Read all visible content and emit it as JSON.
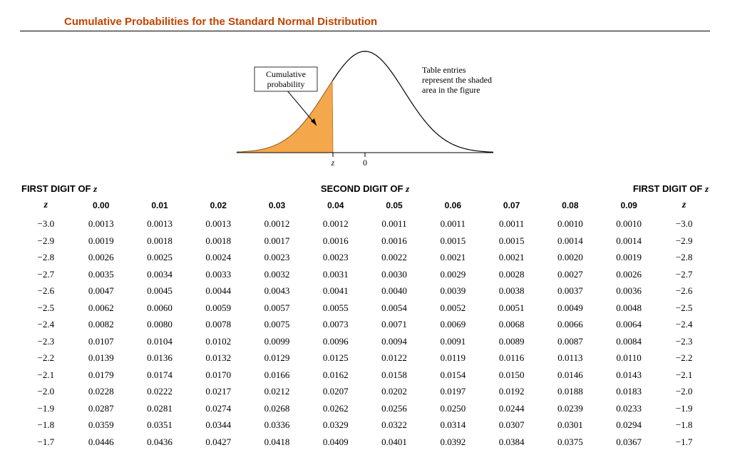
{
  "title": "Cumulative Probabilities for the Standard Normal Distribution",
  "figure": {
    "label_cumulative": "Cumulative\nprobability",
    "label_note": "Table entries\nrepresent the shaded\narea in the figure",
    "axis_z": "z",
    "axis_zero": "0",
    "curve_stroke": "#000000",
    "curve_stroke_width": 1.2,
    "fill_color": "#f4a74b",
    "fill_stroke": "#b06a1a",
    "axis_color": "#000000",
    "font_family": "Times New Roman, Times, serif",
    "label_fontsize": 12,
    "axis_fontsize": 12
  },
  "headings": {
    "left": "FIRST DIGIT OF",
    "center": "SECOND DIGIT OF",
    "right": "FIRST DIGIT OF",
    "zvar": "z"
  },
  "columns": [
    "z",
    "0.00",
    "0.01",
    "0.02",
    "0.03",
    "0.04",
    "0.05",
    "0.06",
    "0.07",
    "0.08",
    "0.09",
    "z"
  ],
  "rows": [
    {
      "z": "−3.0",
      "v": [
        "0.0013",
        "0.0013",
        "0.0013",
        "0.0012",
        "0.0012",
        "0.0011",
        "0.0011",
        "0.0011",
        "0.0010",
        "0.0010"
      ]
    },
    {
      "z": "−2.9",
      "v": [
        "0.0019",
        "0.0018",
        "0.0018",
        "0.0017",
        "0.0016",
        "0.0016",
        "0.0015",
        "0.0015",
        "0.0014",
        "0.0014"
      ]
    },
    {
      "z": "−2.8",
      "v": [
        "0.0026",
        "0.0025",
        "0.0024",
        "0.0023",
        "0.0023",
        "0.0022",
        "0.0021",
        "0.0021",
        "0.0020",
        "0.0019"
      ]
    },
    {
      "z": "−2.7",
      "v": [
        "0.0035",
        "0.0034",
        "0.0033",
        "0.0032",
        "0.0031",
        "0.0030",
        "0.0029",
        "0.0028",
        "0.0027",
        "0.0026"
      ]
    },
    {
      "z": "−2.6",
      "v": [
        "0.0047",
        "0.0045",
        "0.0044",
        "0.0043",
        "0.0041",
        "0.0040",
        "0.0039",
        "0.0038",
        "0.0037",
        "0.0036"
      ]
    },
    {
      "z": "−2.5",
      "v": [
        "0.0062",
        "0.0060",
        "0.0059",
        "0.0057",
        "0.0055",
        "0.0054",
        "0.0052",
        "0.0051",
        "0.0049",
        "0.0048"
      ]
    },
    {
      "z": "−2.4",
      "v": [
        "0.0082",
        "0.0080",
        "0.0078",
        "0.0075",
        "0.0073",
        "0.0071",
        "0.0069",
        "0.0068",
        "0.0066",
        "0.0064"
      ]
    },
    {
      "z": "−2.3",
      "v": [
        "0.0107",
        "0.0104",
        "0.0102",
        "0.0099",
        "0.0096",
        "0.0094",
        "0.0091",
        "0.0089",
        "0.0087",
        "0.0084"
      ]
    },
    {
      "z": "−2.2",
      "v": [
        "0.0139",
        "0.0136",
        "0.0132",
        "0.0129",
        "0.0125",
        "0.0122",
        "0.0119",
        "0.0116",
        "0.0113",
        "0.0110"
      ]
    },
    {
      "z": "−2.1",
      "v": [
        "0.0179",
        "0.0174",
        "0.0170",
        "0.0166",
        "0.0162",
        "0.0158",
        "0.0154",
        "0.0150",
        "0.0146",
        "0.0143"
      ]
    },
    {
      "z": "−2.0",
      "v": [
        "0.0228",
        "0.0222",
        "0.0217",
        "0.0212",
        "0.0207",
        "0.0202",
        "0.0197",
        "0.0192",
        "0.0188",
        "0.0183"
      ]
    },
    {
      "z": "−1.9",
      "v": [
        "0.0287",
        "0.0281",
        "0.0274",
        "0.0268",
        "0.0262",
        "0.0256",
        "0.0250",
        "0.0244",
        "0.0239",
        "0.0233"
      ]
    },
    {
      "z": "−1.8",
      "v": [
        "0.0359",
        "0.0351",
        "0.0344",
        "0.0336",
        "0.0329",
        "0.0322",
        "0.0314",
        "0.0307",
        "0.0301",
        "0.0294"
      ]
    },
    {
      "z": "−1.7",
      "v": [
        "0.0446",
        "0.0436",
        "0.0427",
        "0.0418",
        "0.0409",
        "0.0401",
        "0.0392",
        "0.0384",
        "0.0375",
        "0.0367"
      ]
    }
  ]
}
